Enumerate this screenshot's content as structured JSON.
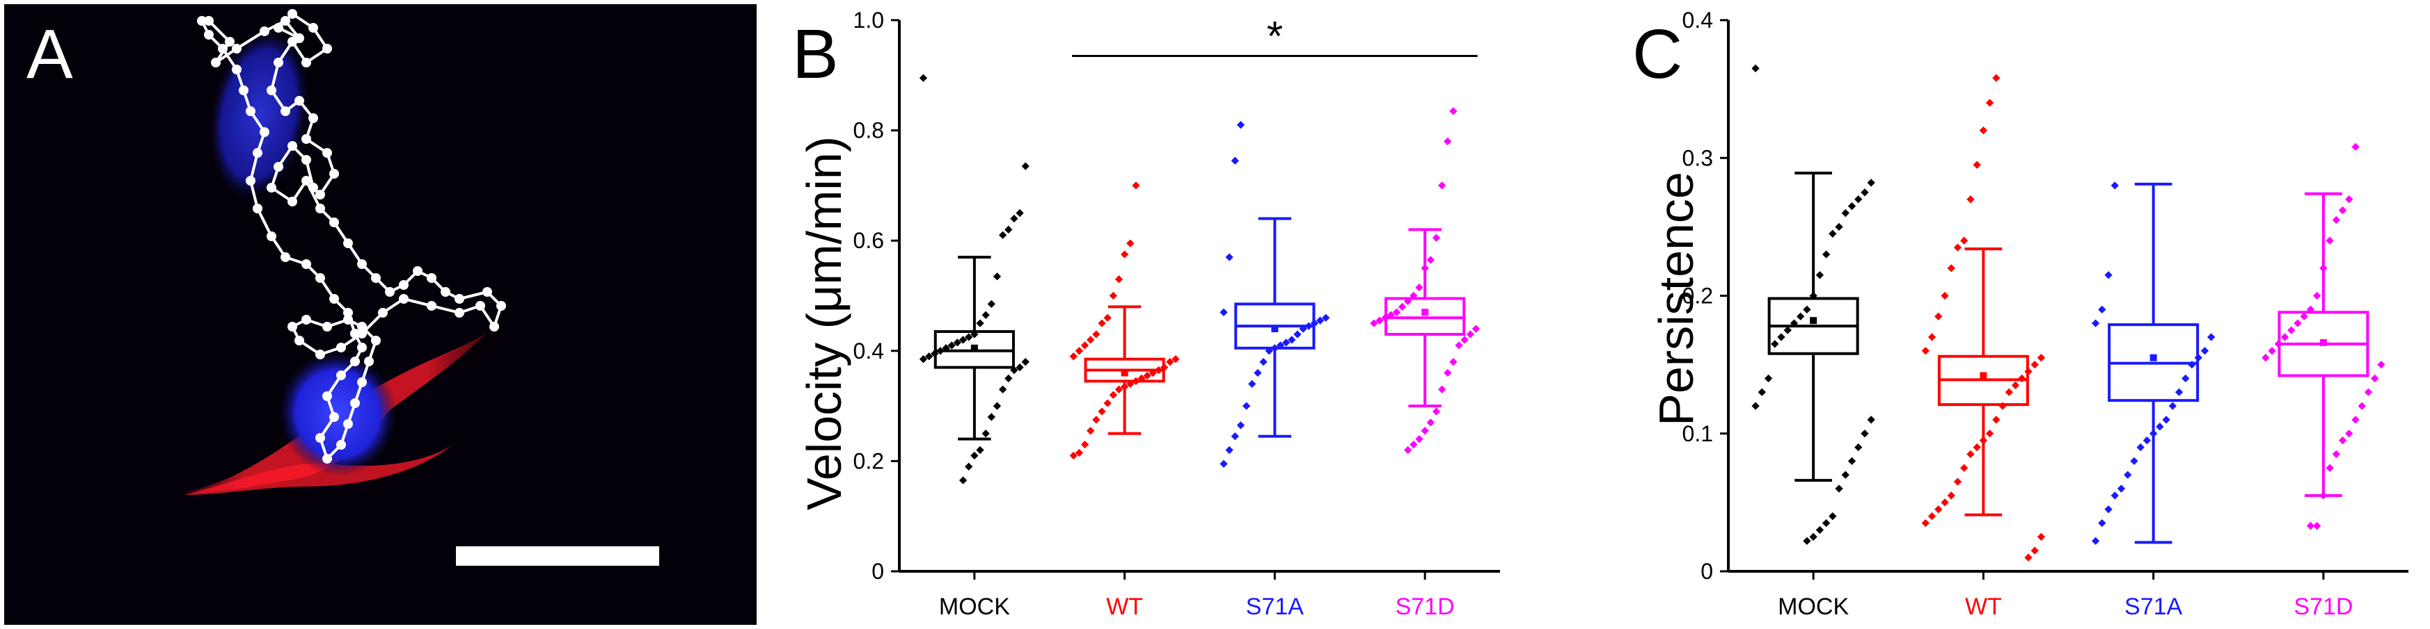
{
  "figure": {
    "panel_a": {
      "label": "A",
      "description_icon": "microscopy-cell-track-image",
      "colors": {
        "background": "#04000a",
        "track": "#ffffff",
        "nucleus": "#2a2cff",
        "membrane": "#ff1a2a"
      }
    }
  },
  "chart_data": [
    {
      "type": "box",
      "panel_label": "B",
      "title": "",
      "xlabel": "",
      "ylabel": "Velocity (μm/min)",
      "ylim": [
        0,
        1.0
      ],
      "yticks": [
        0,
        0.2,
        0.4,
        0.6,
        0.8,
        1.0
      ],
      "ytick_labels": [
        "0",
        "0.2",
        "0.4",
        "0.6",
        "0.8",
        "1.0"
      ],
      "categories": [
        "MOCK",
        "WT",
        "S71A",
        "S71D"
      ],
      "colors": [
        "#000000",
        "#ff0000",
        "#1a1aff",
        "#ff00ff"
      ],
      "boxes": [
        {
          "whisker_low": 0.24,
          "q1": 0.37,
          "median": 0.4,
          "mean": 0.405,
          "q3": 0.435,
          "whisker_high": 0.57
        },
        {
          "whisker_low": 0.25,
          "q1": 0.345,
          "median": 0.365,
          "mean": 0.36,
          "q3": 0.385,
          "whisker_high": 0.48
        },
        {
          "whisker_low": 0.245,
          "q1": 0.405,
          "median": 0.445,
          "mean": 0.44,
          "q3": 0.485,
          "whisker_high": 0.64
        },
        {
          "whisker_low": 0.3,
          "q1": 0.43,
          "median": 0.46,
          "mean": 0.47,
          "q3": 0.495,
          "whisker_high": 0.62
        }
      ],
      "points": [
        [
          0.895,
          0.735,
          0.65,
          0.64,
          0.62,
          0.61,
          0.535,
          0.485,
          0.465,
          0.45,
          0.43,
          0.425,
          0.42,
          0.415,
          0.41,
          0.405,
          0.4,
          0.395,
          0.39,
          0.385,
          0.38,
          0.37,
          0.365,
          0.35,
          0.33,
          0.3,
          0.28,
          0.25,
          0.22,
          0.21,
          0.19,
          0.165
        ],
        [
          0.7,
          0.595,
          0.575,
          0.53,
          0.5,
          0.46,
          0.45,
          0.43,
          0.42,
          0.41,
          0.4,
          0.39,
          0.385,
          0.38,
          0.37,
          0.365,
          0.36,
          0.355,
          0.35,
          0.345,
          0.34,
          0.335,
          0.33,
          0.32,
          0.305,
          0.29,
          0.275,
          0.255,
          0.23,
          0.215,
          0.21
        ],
        [
          0.81,
          0.745,
          0.57,
          0.47,
          0.46,
          0.455,
          0.45,
          0.445,
          0.44,
          0.43,
          0.42,
          0.415,
          0.41,
          0.405,
          0.4,
          0.38,
          0.36,
          0.34,
          0.3,
          0.265,
          0.245,
          0.22,
          0.195
        ],
        [
          0.835,
          0.78,
          0.7,
          0.605,
          0.565,
          0.55,
          0.515,
          0.5,
          0.49,
          0.48,
          0.47,
          0.465,
          0.46,
          0.455,
          0.45,
          0.44,
          0.43,
          0.42,
          0.41,
          0.38,
          0.36,
          0.33,
          0.29,
          0.27,
          0.255,
          0.24,
          0.23,
          0.22
        ]
      ],
      "significance": {
        "from": "WT",
        "to": "S71D",
        "label": "*",
        "y": 0.935
      }
    },
    {
      "type": "box",
      "panel_label": "C",
      "title": "",
      "xlabel": "",
      "ylabel": "Persistence",
      "ylim": [
        0,
        0.4
      ],
      "yticks": [
        0,
        0.1,
        0.2,
        0.3,
        0.4
      ],
      "ytick_labels": [
        "0",
        "0.1",
        "0.2",
        "0.3",
        "0.4"
      ],
      "categories": [
        "MOCK",
        "WT",
        "S71A",
        "S71D"
      ],
      "colors": [
        "#000000",
        "#ff0000",
        "#1a1aff",
        "#ff00ff"
      ],
      "boxes": [
        {
          "whisker_low": 0.066,
          "q1": 0.158,
          "median": 0.178,
          "mean": 0.182,
          "q3": 0.198,
          "whisker_high": 0.289
        },
        {
          "whisker_low": 0.041,
          "q1": 0.121,
          "median": 0.139,
          "mean": 0.142,
          "q3": 0.156,
          "whisker_high": 0.234
        },
        {
          "whisker_low": 0.021,
          "q1": 0.124,
          "median": 0.151,
          "mean": 0.155,
          "q3": 0.179,
          "whisker_high": 0.281
        },
        {
          "whisker_low": 0.055,
          "q1": 0.142,
          "median": 0.165,
          "mean": 0.166,
          "q3": 0.188,
          "whisker_high": 0.274
        }
      ],
      "points": [
        [
          0.365,
          0.282,
          0.275,
          0.27,
          0.265,
          0.26,
          0.25,
          0.245,
          0.23,
          0.215,
          0.2,
          0.19,
          0.185,
          0.18,
          0.175,
          0.17,
          0.165,
          0.14,
          0.13,
          0.12,
          0.11,
          0.1,
          0.09,
          0.08,
          0.07,
          0.06,
          0.04,
          0.035,
          0.03,
          0.025,
          0.022
        ],
        [
          0.358,
          0.34,
          0.32,
          0.295,
          0.27,
          0.24,
          0.235,
          0.22,
          0.2,
          0.185,
          0.17,
          0.16,
          0.155,
          0.15,
          0.145,
          0.14,
          0.135,
          0.13,
          0.12,
          0.11,
          0.1,
          0.095,
          0.09,
          0.085,
          0.075,
          0.065,
          0.055,
          0.05,
          0.045,
          0.04,
          0.035,
          0.025,
          0.015,
          0.01
        ],
        [
          0.28,
          0.215,
          0.19,
          0.18,
          0.17,
          0.16,
          0.155,
          0.15,
          0.14,
          0.13,
          0.12,
          0.11,
          0.105,
          0.1,
          0.095,
          0.09,
          0.08,
          0.07,
          0.06,
          0.055,
          0.045,
          0.035,
          0.022
        ],
        [
          0.308,
          0.27,
          0.262,
          0.255,
          0.24,
          0.22,
          0.2,
          0.19,
          0.185,
          0.18,
          0.175,
          0.17,
          0.165,
          0.16,
          0.155,
          0.15,
          0.14,
          0.13,
          0.12,
          0.11,
          0.1,
          0.095,
          0.085,
          0.075,
          0.055,
          0.033,
          0.033
        ]
      ]
    }
  ]
}
